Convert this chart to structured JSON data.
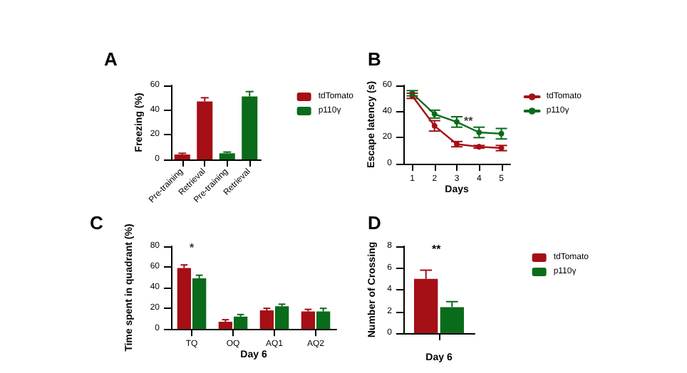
{
  "chart_data": [
    {
      "type": "bar",
      "title": "A",
      "ylabel": "Freezing (%)",
      "categories": [
        "Pre-training",
        "Retrieval",
        "Pre-training",
        "Retrieval"
      ],
      "ylim": [
        0,
        60
      ],
      "yticks": [
        0,
        20,
        40,
        60
      ],
      "legend": "right",
      "series": [
        {
          "name": "tdTomato",
          "color": "#a50f15",
          "values": [
            4,
            47,
            null,
            null
          ],
          "errors": [
            1,
            3,
            null,
            null
          ]
        },
        {
          "name": "p110γ",
          "color": "#0a6b1a",
          "values": [
            null,
            null,
            5,
            51
          ],
          "errors": [
            null,
            null,
            1,
            4
          ]
        }
      ]
    },
    {
      "type": "line",
      "title": "B",
      "ylabel": "Escape latency (s)",
      "xlabel": "Days",
      "x": [
        1,
        2,
        3,
        4,
        5
      ],
      "xlim": [
        0.6,
        5.4
      ],
      "xticks": [
        1,
        2,
        3,
        4,
        5
      ],
      "ylim": [
        0,
        60
      ],
      "yticks": [
        0,
        20,
        40,
        60
      ],
      "legend": "right",
      "marker": "circle",
      "line_style": "solid",
      "annotations": [
        {
          "text": "**",
          "x": 3,
          "y": 33
        }
      ],
      "series": [
        {
          "name": "tdTomato",
          "color": "#a50f15",
          "values": [
            52,
            29,
            15,
            13,
            12
          ],
          "errors": [
            2,
            4,
            2,
            1,
            2
          ]
        },
        {
          "name": "p110γ",
          "color": "#0a6b1a",
          "values": [
            54,
            38,
            32,
            24,
            23
          ],
          "errors": [
            2,
            3,
            4,
            4,
            4
          ]
        }
      ]
    },
    {
      "type": "bar",
      "title": "C",
      "ylabel": "Time spent in quadrant (%)",
      "xlabel": "Day 6",
      "categories": [
        "TQ",
        "OQ",
        "AQ1",
        "AQ2"
      ],
      "ylim": [
        0,
        80
      ],
      "yticks": [
        0,
        20,
        40,
        60,
        80
      ],
      "annotations": [
        {
          "text": "*",
          "x": "TQ",
          "y": 66
        }
      ],
      "series": [
        {
          "color": "#a50f15",
          "values": [
            59,
            7,
            18,
            17
          ],
          "errors": [
            3,
            2,
            2,
            2
          ]
        },
        {
          "color": "#0a6b1a",
          "values": [
            49,
            12,
            22,
            17
          ],
          "errors": [
            3,
            2,
            2,
            3
          ]
        }
      ]
    },
    {
      "type": "bar",
      "title": "D",
      "ylabel": "Number of Crossing",
      "xlabel": "Day 6",
      "categories": [
        null
      ],
      "ylim": [
        0,
        8
      ],
      "yticks": [
        0,
        2,
        4,
        6,
        8
      ],
      "legend": "right",
      "annotations": [
        "**"
      ],
      "series": [
        {
          "name": "tdTomato",
          "color": "#a50f15",
          "values": [
            5
          ],
          "errors": [
            0.8
          ]
        },
        {
          "name": "p110γ",
          "color": "#0a6b1a",
          "values": [
            2.4
          ],
          "errors": [
            0.5
          ]
        }
      ]
    }
  ]
}
